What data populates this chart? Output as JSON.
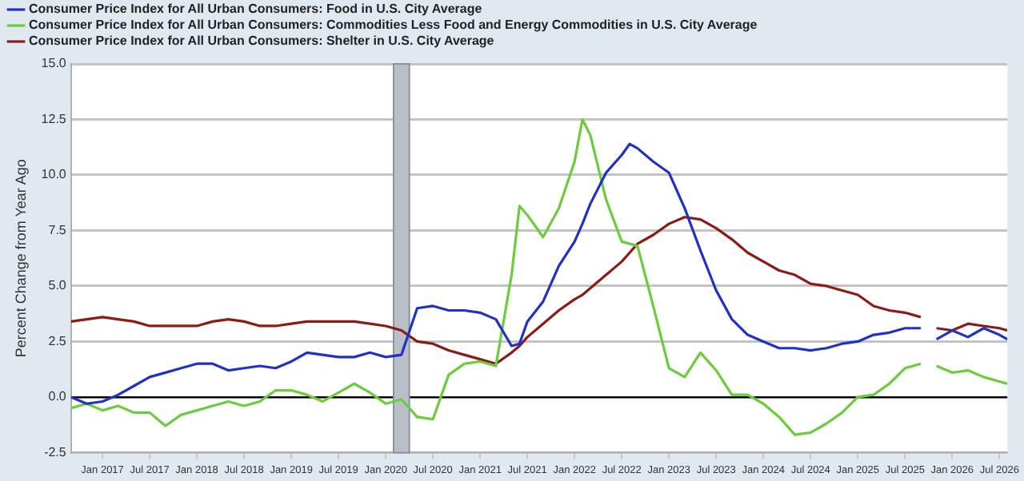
{
  "chart_data": {
    "type": "line",
    "ylabel": "Percent Change from Year Ago",
    "x": [
      "2016-09",
      "2016-11",
      "2017-01",
      "2017-03",
      "2017-05",
      "2017-07",
      "2017-09",
      "2017-11",
      "2018-01",
      "2018-03",
      "2018-05",
      "2018-07",
      "2018-09",
      "2018-11",
      "2019-01",
      "2019-03",
      "2019-05",
      "2019-07",
      "2019-09",
      "2019-11",
      "2020-01",
      "2020-03",
      "2020-05",
      "2020-07",
      "2020-09",
      "2020-11",
      "2021-01",
      "2021-03",
      "2021-05",
      "2021-06",
      "2021-07",
      "2021-09",
      "2021-11",
      "2022-01",
      "2022-02",
      "2022-03",
      "2022-05",
      "2022-07",
      "2022-08",
      "2022-09",
      "2022-11",
      "2023-01",
      "2023-03",
      "2023-05",
      "2023-07",
      "2023-09",
      "2023-11",
      "2024-01",
      "2024-03",
      "2024-05",
      "2024-07",
      "2024-09",
      "2024-11",
      "2025-01",
      "2025-03",
      "2025-05",
      "2025-07",
      "2025-09",
      "2025-10",
      "2025-11",
      "2026-01",
      "2026-03",
      "2026-05",
      "2026-07",
      "2026-08"
    ],
    "series": [
      {
        "name": "Consumer Price Index for All Urban Consumers: Food in U.S. City Average",
        "color": "#1f32c4",
        "values": [
          0.0,
          -0.3,
          -0.2,
          0.1,
          0.5,
          0.9,
          1.1,
          1.3,
          1.5,
          1.5,
          1.2,
          1.3,
          1.4,
          1.3,
          1.6,
          2.0,
          1.9,
          1.8,
          1.8,
          2.0,
          1.8,
          1.9,
          4.0,
          4.1,
          3.9,
          3.9,
          3.8,
          3.5,
          2.3,
          2.4,
          3.4,
          4.3,
          5.9,
          7.0,
          7.8,
          8.7,
          10.1,
          10.9,
          11.4,
          11.2,
          10.6,
          10.1,
          8.5,
          6.6,
          4.8,
          3.5,
          2.8,
          2.5,
          2.2,
          2.2,
          2.1,
          2.2,
          2.4,
          2.5,
          2.8,
          2.9,
          3.1,
          3.1,
          null,
          2.6,
          3.0,
          2.7,
          3.1,
          2.8,
          2.6
        ]
      },
      {
        "name": "Consumer Price Index for All Urban Consumers: Commodities Less Food and Energy Commodities in U.S. City Average",
        "color": "#6ccc3c",
        "values": [
          -0.5,
          -0.3,
          -0.6,
          -0.4,
          -0.7,
          -0.7,
          -1.3,
          -0.8,
          -0.6,
          -0.4,
          -0.2,
          -0.4,
          -0.2,
          0.3,
          0.3,
          0.1,
          -0.2,
          0.2,
          0.6,
          0.2,
          -0.3,
          -0.1,
          -0.9,
          -1.0,
          1.0,
          1.5,
          1.6,
          1.4,
          5.5,
          8.6,
          8.2,
          7.2,
          8.5,
          10.6,
          12.5,
          11.8,
          8.9,
          7.0,
          6.9,
          6.8,
          4.1,
          1.3,
          0.9,
          2.0,
          1.2,
          0.1,
          0.1,
          -0.3,
          -0.9,
          -1.7,
          -1.6,
          -1.2,
          -0.7,
          0.0,
          0.1,
          0.6,
          1.3,
          1.5,
          null,
          1.4,
          1.1,
          1.2,
          0.9,
          0.7,
          0.6
        ]
      },
      {
        "name": "Consumer Price Index for All Urban Consumers: Shelter in U.S. City Average",
        "color": "#8b1c15",
        "values": [
          3.4,
          3.5,
          3.6,
          3.5,
          3.4,
          3.2,
          3.2,
          3.2,
          3.2,
          3.4,
          3.5,
          3.4,
          3.2,
          3.2,
          3.3,
          3.4,
          3.4,
          3.4,
          3.4,
          3.3,
          3.2,
          3.0,
          2.5,
          2.4,
          2.1,
          1.9,
          1.7,
          1.5,
          2.0,
          2.3,
          2.7,
          3.3,
          3.9,
          4.4,
          4.6,
          4.9,
          5.5,
          6.1,
          6.5,
          6.9,
          7.3,
          7.8,
          8.1,
          8.0,
          7.6,
          7.1,
          6.5,
          6.1,
          5.7,
          5.5,
          5.1,
          5.0,
          4.8,
          4.6,
          4.1,
          3.9,
          3.8,
          3.6,
          null,
          3.1,
          3.0,
          3.3,
          3.2,
          3.1,
          3.0
        ]
      }
    ],
    "xlim": [
      "2016-09",
      "2026-08"
    ],
    "xticks": [
      {
        "value": "2017-01",
        "label": "Jan 2017"
      },
      {
        "value": "2017-07",
        "label": "Jul 2017"
      },
      {
        "value": "2018-01",
        "label": "Jan 2018"
      },
      {
        "value": "2018-07",
        "label": "Jul 2018"
      },
      {
        "value": "2019-01",
        "label": "Jan 2019"
      },
      {
        "value": "2019-07",
        "label": "Jul 2019"
      },
      {
        "value": "2020-01",
        "label": "Jan 2020"
      },
      {
        "value": "2020-07",
        "label": "Jul 2020"
      },
      {
        "value": "2021-01",
        "label": "Jan 2021"
      },
      {
        "value": "2021-07",
        "label": "Jul 2021"
      },
      {
        "value": "2022-01",
        "label": "Jan 2022"
      },
      {
        "value": "2022-07",
        "label": "Jul 2022"
      },
      {
        "value": "2023-01",
        "label": "Jan 2023"
      },
      {
        "value": "2023-07",
        "label": "Jul 2023"
      },
      {
        "value": "2024-01",
        "label": "Jan 2024"
      },
      {
        "value": "2024-07",
        "label": "Jul 2024"
      },
      {
        "value": "2025-01",
        "label": "Jan 2025"
      },
      {
        "value": "2025-07",
        "label": "Jul 2025"
      },
      {
        "value": "2026-01",
        "label": "Jan 2026"
      },
      {
        "value": "2026-07",
        "label": "Jul 2026"
      }
    ],
    "ylim": [
      -2.5,
      15
    ],
    "yticks": [
      {
        "value": -2.5,
        "label": "-2.5"
      },
      {
        "value": 0,
        "label": "0.0"
      },
      {
        "value": 2.5,
        "label": "2.5"
      },
      {
        "value": 5,
        "label": "5.0"
      },
      {
        "value": 7.5,
        "label": "7.5"
      },
      {
        "value": 10,
        "label": "10.0"
      },
      {
        "value": 12.5,
        "label": "12.5"
      },
      {
        "value": 15,
        "label": "15.0"
      }
    ],
    "bands": [
      {
        "axis": "x",
        "from": "2020-02",
        "to": "2020-04",
        "color": "#b9bec8"
      }
    ],
    "grid": "y",
    "legend": "top left",
    "marker": "none",
    "line_style": "solid"
  }
}
